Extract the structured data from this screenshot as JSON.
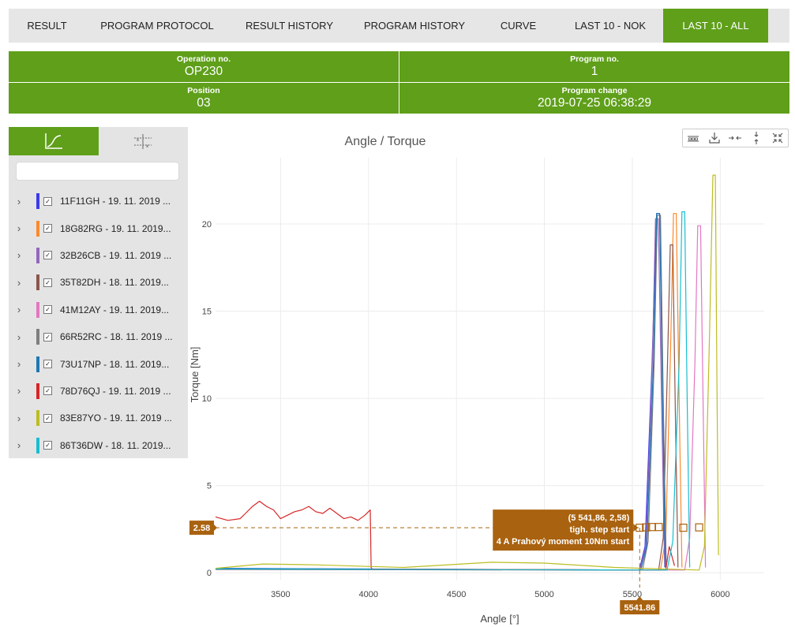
{
  "tabs": [
    {
      "label": "RESULT"
    },
    {
      "label": "PROGRAM PROTOCOL"
    },
    {
      "label": "RESULT HISTORY"
    },
    {
      "label": "PROGRAM HISTORY"
    },
    {
      "label": "CURVE"
    },
    {
      "label": "LAST 10 - NOK"
    },
    {
      "label": "LAST 10 - ALL"
    }
  ],
  "active_tab": "LAST 10 - ALL",
  "info": {
    "operation_label": "Operation no.",
    "operation_value": "OP230",
    "program_label": "Program no.",
    "program_value": "1",
    "position_label": "Position",
    "position_value": "03",
    "change_label": "Program change",
    "change_value": "2019-07-25 06:38:29"
  },
  "search": {
    "placeholder": "",
    "value": ""
  },
  "panel_tabs": [
    {
      "icon": "curve-chart-icon"
    },
    {
      "icon": "limits-icon"
    }
  ],
  "items": [
    {
      "label": "11F11GH - 19. 11. 2019 ...",
      "color": "#3b3bea"
    },
    {
      "label": "18G82RG - 19. 11. 2019...",
      "color": "#fb8a2b"
    },
    {
      "label": "32B26CB - 19. 11. 2019 ...",
      "color": "#9467bd"
    },
    {
      "label": "35T82DH - 18. 11. 2019...",
      "color": "#8c564b"
    },
    {
      "label": "41M12AY - 19. 11. 2019...",
      "color": "#e377c2"
    },
    {
      "label": "66R52RC - 18. 11. 2019 ...",
      "color": "#7f7f7f"
    },
    {
      "label": "73U17NP - 18. 11. 2019...",
      "color": "#1f77b4"
    },
    {
      "label": "78D76QJ - 19. 11. 2019 ...",
      "color": "#d62728"
    },
    {
      "label": "83E87YO - 19. 11. 2019 ...",
      "color": "#bcbd22"
    },
    {
      "label": "86T36DW - 18. 11. 2019...",
      "color": "#17becf"
    }
  ],
  "toolbar": [
    "select-icon",
    "download-icon",
    "zoom-in-x-icon",
    "zoom-in-y-icon",
    "reset-zoom-icon"
  ],
  "chart_data": {
    "type": "line",
    "title": "Angle / Torque",
    "xlabel": "Angle [°]",
    "ylabel": "Torque [Nm]",
    "xlim": [
      3130,
      6250
    ],
    "ylim": [
      -0.4,
      23.8
    ],
    "xticks": [
      3500,
      4000,
      4500,
      5000,
      5500,
      6000
    ],
    "yticks": [
      0,
      5,
      10,
      15,
      20
    ],
    "grid": true,
    "accent_color": "#a9620f",
    "series": [
      {
        "name": "11F11GH",
        "color": "#3b3bea",
        "x": [
          3130,
          5540,
          5572,
          5612,
          5638,
          5655,
          5675,
          5693
        ],
        "y": [
          0.25,
          0.15,
          1.5,
          12,
          20.6,
          20.6,
          10,
          0.3
        ]
      },
      {
        "name": "18G82RG",
        "color": "#fb8a2b",
        "x": [
          3130,
          5660,
          5690,
          5718,
          5734,
          5750,
          5766,
          5782
        ],
        "y": [
          0.2,
          0.15,
          2,
          13,
          20.6,
          20.6,
          10,
          0.3
        ]
      },
      {
        "name": "32B26CB",
        "color": "#9467bd",
        "x": [
          3130,
          5542,
          5578,
          5614,
          5632,
          5648,
          5666,
          5684
        ],
        "y": [
          0.22,
          0.15,
          1.5,
          12,
          20.3,
          20.3,
          10,
          0.3
        ]
      },
      {
        "name": "35T82DH",
        "color": "#8c564b",
        "x": [
          3130,
          5650,
          5676,
          5700,
          5716,
          5730,
          5745,
          5760
        ],
        "y": [
          0.18,
          0.15,
          2,
          12,
          18.8,
          18.8,
          9,
          0.3
        ]
      },
      {
        "name": "41M12AY",
        "color": "#e377c2",
        "x": [
          3130,
          5798,
          5826,
          5856,
          5872,
          5888,
          5902,
          5916
        ],
        "y": [
          0.2,
          0.15,
          2,
          12,
          19.9,
          19.9,
          10,
          0.3
        ]
      },
      {
        "name": "66R52RC",
        "color": "#7f7f7f",
        "x": [
          3130,
          5558,
          5590,
          5624,
          5642,
          5660,
          5676,
          5692
        ],
        "y": [
          0.23,
          0.15,
          1.8,
          12,
          20.5,
          20.5,
          10,
          0.3
        ]
      },
      {
        "name": "73U17NP",
        "color": "#1f77b4",
        "x": [
          3130,
          5548,
          5582,
          5620,
          5638,
          5655,
          5672,
          5688
        ],
        "y": [
          0.24,
          0.15,
          1.5,
          12,
          20.6,
          20.6,
          10,
          0.3
        ]
      },
      {
        "name": "78D76QJ",
        "color": "#d62728",
        "x": [
          3130,
          3200,
          3270,
          3300,
          3340,
          3380,
          3420,
          3460,
          3500,
          3540,
          3580,
          3620,
          3660,
          3700,
          3740,
          3780,
          3820,
          3860,
          3900,
          3940,
          3980,
          4010,
          4015,
          4020,
          4100,
          5690,
          5710,
          5740
        ],
        "y": [
          3.2,
          3.0,
          3.1,
          3.4,
          3.8,
          4.1,
          3.8,
          3.6,
          3.1,
          3.3,
          3.5,
          3.6,
          3.8,
          3.5,
          3.4,
          3.7,
          3.4,
          3.1,
          3.2,
          3.0,
          3.3,
          3.6,
          0.3,
          0.2,
          0.2,
          0.15,
          1.5,
          0.4
        ]
      },
      {
        "name": "83E87YO",
        "color": "#bcbd22",
        "x": [
          3130,
          3400,
          3700,
          4200,
          4700,
          5000,
          5400,
          5880,
          5910,
          5940,
          5958,
          5972,
          5982,
          5990
        ],
        "y": [
          0.25,
          0.5,
          0.45,
          0.3,
          0.6,
          0.55,
          0.3,
          0.15,
          1.5,
          14,
          22.8,
          22.8,
          10,
          1
        ]
      },
      {
        "name": "86T36DW",
        "color": "#17becf",
        "x": [
          3130,
          5698,
          5730,
          5766,
          5782,
          5798,
          5812,
          5826
        ],
        "y": [
          0.21,
          0.15,
          1.8,
          12,
          20.7,
          20.7,
          10,
          0.3
        ]
      }
    ],
    "markers": [
      {
        "x": 5541.86,
        "y": 2.58
      },
      {
        "x": 5578,
        "y": 2.6
      },
      {
        "x": 5612,
        "y": 2.62
      },
      {
        "x": 5650,
        "y": 2.62
      },
      {
        "x": 5790,
        "y": 2.58
      },
      {
        "x": 5880,
        "y": 2.6
      }
    ],
    "tooltip": {
      "lines": [
        "(5 541,86, 2,58)",
        "tigh. step start",
        "4 A Prahový moment 10Nm start"
      ],
      "x": 5541.86,
      "y": 2.58
    },
    "crosshair_x_label": "5541.86",
    "crosshair_y_label": "2.58"
  }
}
